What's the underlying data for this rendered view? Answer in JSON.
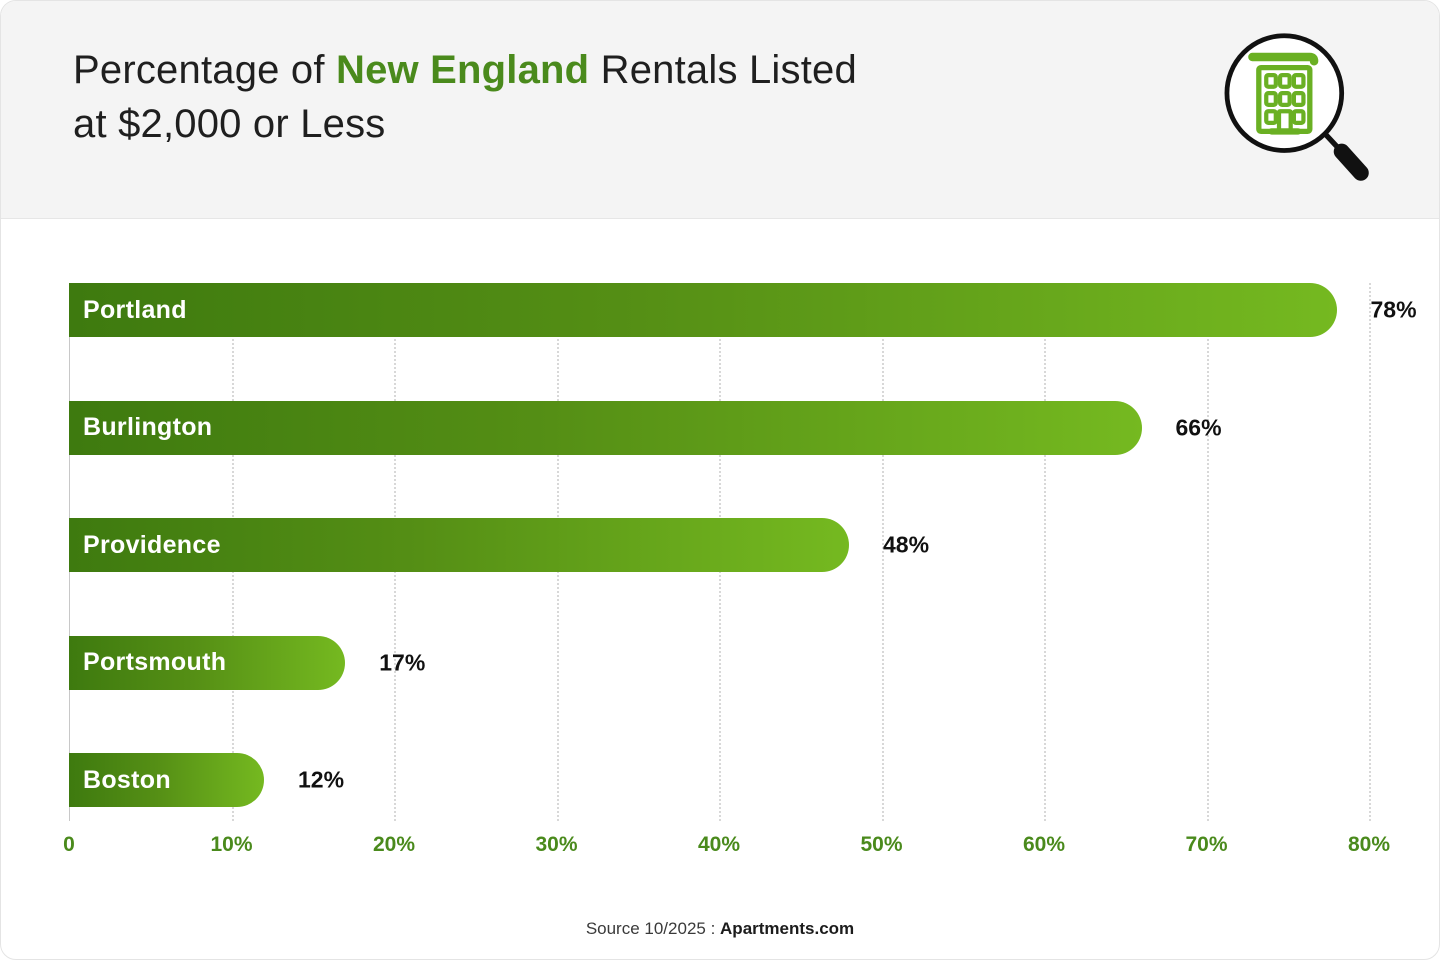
{
  "header": {
    "title_prefix": "Percentage of ",
    "title_highlight": "New England",
    "title_suffix": " Rentals Listed",
    "title_line2": "at $2,000 or Less",
    "icon": "magnifier-building-icon"
  },
  "chart_data": {
    "type": "bar",
    "orientation": "horizontal",
    "title": "Percentage of New England Rentals Listed at $2,000 or Less",
    "categories": [
      "Portland",
      "Burlington",
      "Providence",
      "Portsmouth",
      "Boston"
    ],
    "values": [
      78,
      66,
      48,
      17,
      12
    ],
    "value_labels": [
      "78%",
      "66%",
      "48%",
      "17%",
      "12%"
    ],
    "xlim": [
      0,
      80
    ],
    "x_ticks": [
      "0",
      "10%",
      "20%",
      "30%",
      "40%",
      "50%",
      "60%",
      "70%",
      "80%"
    ],
    "grid": "vertical-dotted",
    "legend": "none",
    "colors": {
      "bar_gradient_start": "#3e7a0f",
      "bar_gradient_end": "#75b920",
      "bar_label": "#ffffff",
      "value_label": "#111111",
      "tick_label": "#4a8a1c",
      "gridline": "#d8d8d8",
      "header_bg": "#f4f4f4",
      "title_highlight": "#4a8a1c"
    }
  },
  "footer": {
    "source_prefix": "Source 10/2025 : ",
    "source_brand": "Apartments.com"
  }
}
